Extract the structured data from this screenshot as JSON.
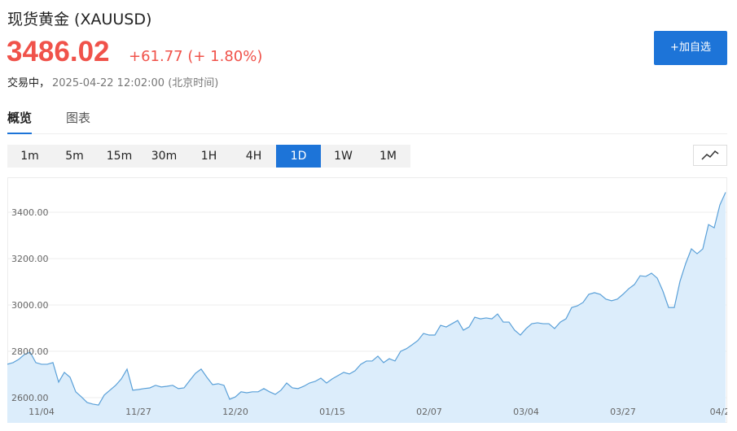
{
  "header": {
    "title": "现货黄金  (XAUUSD)",
    "price": "3486.02",
    "change": "+61.77 (+ 1.80%)",
    "status": "交易中，",
    "time": "2025-04-22 12:02:00 (北京时间)",
    "button": "+加自选"
  },
  "tabs": [
    "概览",
    "图表"
  ],
  "active_tab": 0,
  "intervals": [
    "1m",
    "5m",
    "15m",
    "30m",
    "1H",
    "4H",
    "1D",
    "1W",
    "1M"
  ],
  "active_interval": 6,
  "chart_data": {
    "type": "area",
    "color": "#5aa0d8",
    "fill": "#dcedfb",
    "grid": true,
    "categories": [
      null,
      null,
      null,
      null,
      null,
      null,
      "11/04",
      null,
      null,
      null,
      null,
      null,
      null,
      null,
      null,
      null,
      null,
      null,
      null,
      null,
      null,
      null,
      null,
      "11/27",
      null,
      null,
      null,
      null,
      null,
      null,
      null,
      null,
      null,
      null,
      null,
      null,
      null,
      null,
      null,
      null,
      "12/20",
      null,
      null,
      null,
      null,
      null,
      null,
      null,
      null,
      null,
      null,
      null,
      null,
      null,
      null,
      null,
      null,
      "01/15",
      null,
      null,
      null,
      null,
      null,
      null,
      null,
      null,
      null,
      null,
      null,
      null,
      null,
      null,
      null,
      null,
      "02/07",
      null,
      null,
      null,
      null,
      null,
      null,
      null,
      null,
      null,
      null,
      null,
      null,
      null,
      null,
      null,
      null,
      "03/04",
      null,
      null,
      null,
      null,
      null,
      null,
      null,
      null,
      null,
      null,
      null,
      null,
      null,
      null,
      null,
      null,
      "03/27",
      null,
      null,
      null,
      null,
      null,
      null,
      null,
      null,
      null,
      null,
      null,
      null,
      null,
      null,
      null,
      null,
      "04/2",
      null
    ],
    "values": [
      2744,
      2751,
      2765,
      2786,
      2796,
      2751,
      2744,
      2744,
      2751,
      2667,
      2709,
      2688,
      2625,
      2603,
      2579,
      2572,
      2568,
      2611,
      2632,
      2653,
      2681,
      2723,
      2632,
      2635,
      2639,
      2642,
      2653,
      2646,
      2649,
      2653,
      2639,
      2642,
      2674,
      2705,
      2723,
      2688,
      2656,
      2660,
      2653,
      2593,
      2603,
      2625,
      2621,
      2625,
      2625,
      2639,
      2625,
      2614,
      2632,
      2663,
      2642,
      2639,
      2649,
      2663,
      2670,
      2684,
      2663,
      2681,
      2695,
      2709,
      2702,
      2716,
      2744,
      2758,
      2758,
      2779,
      2751,
      2768,
      2758,
      2800,
      2811,
      2828,
      2846,
      2877,
      2870,
      2870,
      2912,
      2905,
      2919,
      2933,
      2891,
      2905,
      2947,
      2940,
      2944,
      2940,
      2961,
      2926,
      2926,
      2891,
      2870,
      2898,
      2919,
      2923,
      2919,
      2919,
      2898,
      2926,
      2940,
      2989,
      2996,
      3011,
      3046,
      3053,
      3046,
      3025,
      3018,
      3025,
      3046,
      3070,
      3088,
      3126,
      3123,
      3137,
      3116,
      3060,
      2989,
      2989,
      3102,
      3179,
      3242,
      3221,
      3242,
      3347,
      3333,
      3432,
      3486
    ],
    "ylim": [
      2491,
      3551
    ],
    "yticks": [
      {
        "value": 2600,
        "label": "2600.00"
      },
      {
        "value": 2800,
        "label": "2800.00"
      },
      {
        "value": 3000,
        "label": "3000.00"
      },
      {
        "value": 3200,
        "label": "3200.00"
      },
      {
        "value": 3400,
        "label": "3400.00"
      }
    ]
  }
}
